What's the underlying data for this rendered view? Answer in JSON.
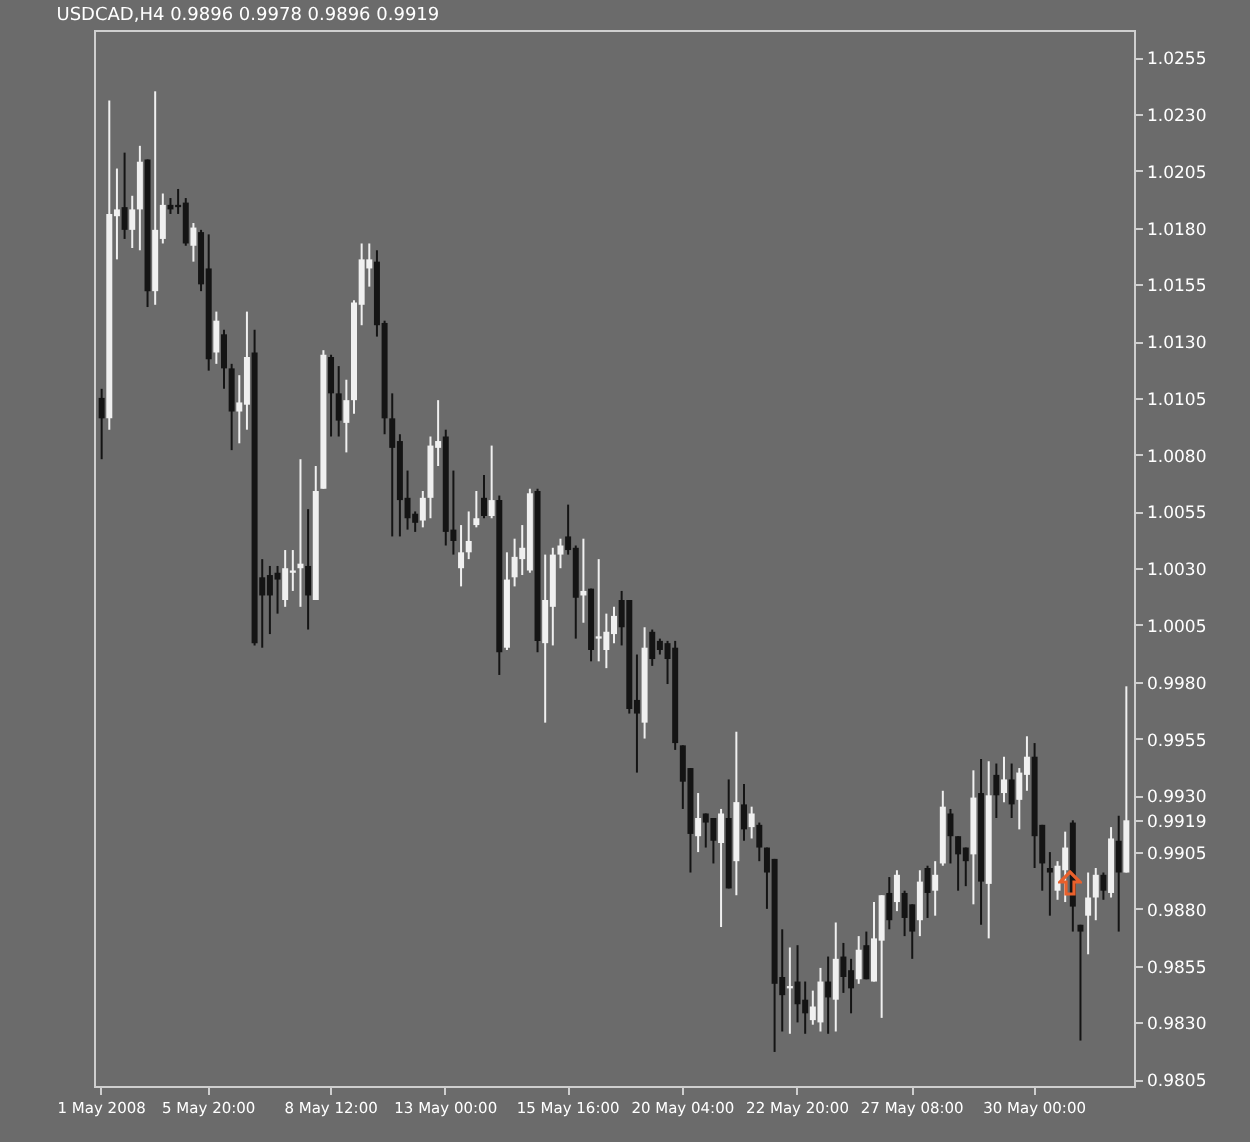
{
  "chart_data": {
    "type": "candlestick",
    "title": "USDCAD,H4 0.9896 0.9978 0.9896 0.9919",
    "categories": [
      "1 May 2008",
      null,
      null,
      null,
      null,
      null,
      null,
      null,
      null,
      null,
      null,
      null,
      null,
      null,
      "5 May 20:00",
      null,
      null,
      null,
      null,
      null,
      null,
      null,
      null,
      null,
      null,
      null,
      null,
      null,
      null,
      null,
      "8 May 12:00",
      null,
      null,
      null,
      null,
      null,
      null,
      null,
      null,
      null,
      null,
      null,
      null,
      null,
      null,
      "13 May 00:00",
      null,
      null,
      null,
      null,
      null,
      null,
      null,
      null,
      null,
      null,
      null,
      null,
      null,
      null,
      null,
      "15 May 16:00",
      null,
      null,
      null,
      null,
      null,
      null,
      null,
      null,
      null,
      null,
      null,
      null,
      null,
      null,
      "20 May 04:00",
      null,
      null,
      null,
      null,
      null,
      null,
      null,
      null,
      null,
      null,
      null,
      null,
      null,
      null,
      "22 May 20:00",
      null,
      null,
      null,
      null,
      null,
      null,
      null,
      null,
      null,
      null,
      null,
      null,
      null,
      null,
      "27 May 08:00",
      null,
      null,
      null,
      null,
      null,
      null,
      null,
      null,
      null,
      null,
      null,
      null,
      null,
      null,
      null,
      "30 May 00:00",
      null,
      null,
      null,
      null,
      null,
      null,
      null,
      null,
      null,
      null,
      null,
      null
    ],
    "ohlc": [
      [
        1.0105,
        1.0109,
        1.0078,
        1.0096
      ],
      [
        1.0096,
        1.0236,
        1.0091,
        1.0186
      ],
      [
        1.0185,
        1.0206,
        1.0166,
        1.0188
      ],
      [
        1.0189,
        1.0213,
        1.0175,
        1.0179
      ],
      [
        1.0179,
        1.0194,
        1.0171,
        1.0188
      ],
      [
        1.0188,
        1.0216,
        1.017,
        1.0209
      ],
      [
        1.021,
        1.021,
        1.0145,
        1.0152
      ],
      [
        1.0152,
        1.024,
        1.0146,
        1.0179
      ],
      [
        1.0175,
        1.0195,
        1.0173,
        1.019
      ],
      [
        1.019,
        1.0193,
        1.0186,
        1.0188
      ],
      [
        1.019,
        1.0197,
        1.0186,
        1.0189
      ],
      [
        1.0191,
        1.0193,
        1.0172,
        1.0173
      ],
      [
        1.0172,
        1.0182,
        1.0165,
        1.018
      ],
      [
        1.0178,
        1.0179,
        1.0152,
        1.0155
      ],
      [
        1.0162,
        1.0177,
        1.0117,
        1.0122
      ],
      [
        1.0125,
        1.0143,
        1.012,
        1.0139
      ],
      [
        1.0133,
        1.0135,
        1.0109,
        1.0118
      ],
      [
        1.0118,
        1.012,
        1.0082,
        1.0099
      ],
      [
        1.0099,
        1.0115,
        1.0085,
        1.0103
      ],
      [
        1.0102,
        1.0143,
        1.0091,
        1.0123
      ],
      [
        1.0125,
        1.0135,
        0.9996,
        0.9997
      ],
      [
        1.0026,
        1.0034,
        0.9995,
        1.0018
      ],
      [
        1.0027,
        1.0031,
        1.0001,
        1.0018
      ],
      [
        1.0028,
        1.0031,
        1.001,
        1.0025
      ],
      [
        1.0016,
        1.0038,
        1.0013,
        1.003
      ],
      [
        1.0028,
        1.0038,
        1.002,
        1.0029
      ],
      [
        1.003,
        1.0078,
        1.0013,
        1.0032
      ],
      [
        1.0031,
        1.0056,
        1.0003,
        1.0018
      ],
      [
        1.0016,
        1.0075,
        1.0016,
        1.0064
      ],
      [
        1.0065,
        1.0126,
        1.0065,
        1.0124
      ],
      [
        1.0123,
        1.0124,
        1.0088,
        1.0107
      ],
      [
        1.0107,
        1.0119,
        1.0088,
        1.0095
      ],
      [
        1.0094,
        1.0113,
        1.0081,
        1.0104
      ],
      [
        1.0104,
        1.0148,
        1.0098,
        1.0147
      ],
      [
        1.0146,
        1.0173,
        1.0137,
        1.0166
      ],
      [
        1.0162,
        1.0173,
        1.0154,
        1.0166
      ],
      [
        1.0165,
        1.017,
        1.0132,
        1.0137
      ],
      [
        1.0138,
        1.0139,
        1.0089,
        1.0096
      ],
      [
        1.0096,
        1.0107,
        1.0044,
        1.0083
      ],
      [
        1.0086,
        1.0089,
        1.0044,
        1.006
      ],
      [
        1.0061,
        1.0073,
        1.0047,
        1.0052
      ],
      [
        1.0054,
        1.0055,
        1.0046,
        1.005
      ],
      [
        1.0051,
        1.0064,
        1.0048,
        1.0061
      ],
      [
        1.0061,
        1.0088,
        1.0052,
        1.0084
      ],
      [
        1.0083,
        1.0104,
        1.0075,
        1.0086
      ],
      [
        1.0088,
        1.0091,
        1.004,
        1.0046
      ],
      [
        1.0047,
        1.0073,
        1.0036,
        1.0042
      ],
      [
        1.003,
        1.0049,
        1.0022,
        1.0037
      ],
      [
        1.0037,
        1.0055,
        1.0034,
        1.0042
      ],
      [
        1.0049,
        1.0064,
        1.0048,
        1.0052
      ],
      [
        1.0061,
        1.0071,
        1.0052,
        1.0053
      ],
      [
        1.0053,
        1.0084,
        1.0052,
        1.006
      ],
      [
        1.006,
        1.0062,
        0.9983,
        0.9993
      ],
      [
        0.9995,
        1.0037,
        0.9994,
        1.0025
      ],
      [
        1.0026,
        1.0043,
        1.0022,
        1.0035
      ],
      [
        1.0034,
        1.0049,
        1.0027,
        1.0039
      ],
      [
        1.0029,
        1.0065,
        1.0028,
        1.0063
      ],
      [
        1.0064,
        1.0065,
        0.9993,
        0.9998
      ],
      [
        0.9997,
        1.0036,
        0.9962,
        1.0016
      ],
      [
        1.0013,
        1.0039,
        0.9996,
        1.0036
      ],
      [
        1.0036,
        1.0043,
        1.003,
        1.004
      ],
      [
        1.0044,
        1.0058,
        1.0036,
        1.0038
      ],
      [
        1.0039,
        1.004,
        0.9999,
        1.0017
      ],
      [
        1.0018,
        1.0043,
        1.0006,
        1.002
      ],
      [
        1.0021,
        1.0021,
        0.9989,
        0.9994
      ],
      [
        0.9999,
        1.0034,
        0.9989,
        1.0
      ],
      [
        0.9994,
        1.001,
        0.9986,
        1.0002
      ],
      [
        1.0001,
        1.0013,
        0.9997,
        1.0009
      ],
      [
        1.0016,
        1.002,
        0.9996,
        1.0004
      ],
      [
        1.0016,
        1.0016,
        0.9966,
        0.9968
      ],
      [
        0.9972,
        0.9992,
        0.994,
        0.9966
      ],
      [
        0.9962,
        1.0004,
        0.9955,
        0.9995
      ],
      [
        1.0002,
        1.0003,
        0.9987,
        0.999
      ],
      [
        0.9998,
        0.9999,
        0.9992,
        0.9994
      ],
      [
        0.9997,
        0.9998,
        0.9979,
        0.999
      ],
      [
        0.9995,
        0.9998,
        0.995,
        0.9953
      ],
      [
        0.9952,
        0.9952,
        0.9924,
        0.9936
      ],
      [
        0.9942,
        0.9942,
        0.9896,
        0.9913
      ],
      [
        0.9912,
        0.9931,
        0.9905,
        0.992
      ],
      [
        0.9922,
        0.9922,
        0.9907,
        0.9918
      ],
      [
        0.992,
        0.992,
        0.99,
        0.991
      ],
      [
        0.9909,
        0.9924,
        0.9872,
        0.9922
      ],
      [
        0.992,
        0.9937,
        0.9889,
        0.9889
      ],
      [
        0.9901,
        0.9958,
        0.9886,
        0.9927
      ],
      [
        0.9926,
        0.9935,
        0.991,
        0.9915
      ],
      [
        0.9916,
        0.9925,
        0.9911,
        0.9922
      ],
      [
        0.9917,
        0.9918,
        0.9901,
        0.9907
      ],
      [
        0.9907,
        0.9907,
        0.988,
        0.9896
      ],
      [
        0.9902,
        0.9902,
        0.9817,
        0.9847
      ],
      [
        0.985,
        0.9871,
        0.9826,
        0.9842
      ],
      [
        0.9845,
        0.9863,
        0.9825,
        0.9846
      ],
      [
        0.9848,
        0.9864,
        0.983,
        0.9838
      ],
      [
        0.984,
        0.9848,
        0.9825,
        0.9834
      ],
      [
        0.9831,
        0.9844,
        0.9829,
        0.9837
      ],
      [
        0.983,
        0.9854,
        0.9826,
        0.9848
      ],
      [
        0.9848,
        0.9859,
        0.9825,
        0.9841
      ],
      [
        0.984,
        0.9874,
        0.9826,
        0.9858
      ],
      [
        0.9859,
        0.9865,
        0.9843,
        0.985
      ],
      [
        0.9853,
        0.9858,
        0.9834,
        0.9845
      ],
      [
        0.9849,
        0.9868,
        0.9847,
        0.9862
      ],
      [
        0.9864,
        0.987,
        0.9849,
        0.9849
      ],
      [
        0.9848,
        0.9883,
        0.9848,
        0.9867
      ],
      [
        0.9866,
        0.9886,
        0.9832,
        0.9886
      ],
      [
        0.9887,
        0.9894,
        0.9871,
        0.9875
      ],
      [
        0.9883,
        0.9897,
        0.9879,
        0.9895
      ],
      [
        0.9887,
        0.9888,
        0.9868,
        0.9876
      ],
      [
        0.9882,
        0.9882,
        0.9858,
        0.987
      ],
      [
        0.9875,
        0.9897,
        0.9868,
        0.9892
      ],
      [
        0.9898,
        0.9899,
        0.9876,
        0.9887
      ],
      [
        0.9888,
        0.9901,
        0.9877,
        0.9895
      ],
      [
        0.99,
        0.9932,
        0.9899,
        0.9925
      ],
      [
        0.9922,
        0.9924,
        0.99,
        0.9912
      ],
      [
        0.9912,
        0.9912,
        0.9888,
        0.9904
      ],
      [
        0.9907,
        0.9907,
        0.989,
        0.9901
      ],
      [
        0.9904,
        0.9941,
        0.9882,
        0.9929
      ],
      [
        0.9931,
        0.9946,
        0.9873,
        0.9892
      ],
      [
        0.9891,
        0.9945,
        0.9867,
        0.993
      ],
      [
        0.9939,
        0.9944,
        0.992,
        0.993
      ],
      [
        0.9931,
        0.9947,
        0.9927,
        0.9937
      ],
      [
        0.9937,
        0.9944,
        0.992,
        0.9926
      ],
      [
        0.9928,
        0.9942,
        0.9915,
        0.994
      ],
      [
        0.9939,
        0.9956,
        0.9932,
        0.9947
      ],
      [
        0.9947,
        0.9953,
        0.9898,
        0.9912
      ],
      [
        0.9917,
        0.9917,
        0.9888,
        0.99
      ],
      [
        0.9898,
        0.9905,
        0.9877,
        0.9896
      ],
      [
        0.9888,
        0.9901,
        0.9884,
        0.9899
      ],
      [
        0.9897,
        0.9914,
        0.9883,
        0.9907
      ],
      [
        0.9918,
        0.9919,
        0.987,
        0.9881
      ],
      [
        0.9873,
        0.9873,
        0.9822,
        0.987
      ],
      [
        0.9877,
        0.9896,
        0.986,
        0.9885
      ],
      [
        0.9885,
        0.9898,
        0.9875,
        0.9895
      ],
      [
        0.9895,
        0.9896,
        0.9884,
        0.9888
      ],
      [
        0.9887,
        0.9916,
        0.9885,
        0.9911
      ],
      [
        0.991,
        0.9921,
        0.987,
        0.9896
      ],
      [
        0.9896,
        0.9978,
        0.9896,
        0.9919
      ]
    ],
    "ylim": [
      0.9802,
      1.0267
    ],
    "yticks": [
      0.9805,
      {
        "value": 0.983,
        "label": "0.9830"
      },
      0.9855,
      {
        "value": 0.988,
        "label": "0.9880"
      },
      0.9905,
      0.9919,
      {
        "value": 0.993,
        "label": "0.9930"
      },
      0.9955,
      {
        "value": 0.998,
        "label": "0.9980"
      },
      1.0005,
      {
        "value": 1.003,
        "label": "1.0030"
      },
      1.0055,
      {
        "value": 1.008,
        "label": "1.0080"
      },
      1.0105,
      {
        "value": 1.013,
        "label": "1.0130"
      },
      1.0155,
      {
        "value": 1.018,
        "label": "1.0180"
      },
      1.0205,
      {
        "value": 1.023,
        "label": "1.0230"
      },
      1.0255
    ]
  }
}
